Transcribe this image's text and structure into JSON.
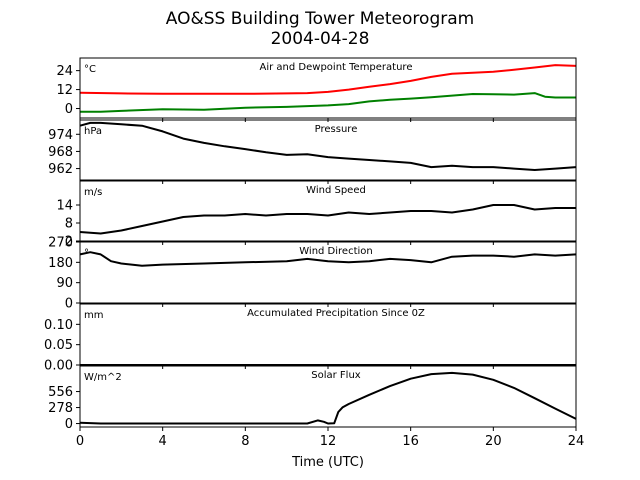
{
  "figure": {
    "title": "AO&SS Building Tower Meteorogram",
    "subtitle": "2004-04-28",
    "xlabel": "Time (UTC)"
  },
  "colors": {
    "temperature": "#ff0000",
    "dewpoint": "#008000",
    "default": "#000000"
  },
  "chart_data": [
    {
      "type": "line",
      "title": "Air and Dewpoint Temperature",
      "unit": "°C",
      "xlim": [
        0,
        24
      ],
      "xticks": [
        0,
        4,
        8,
        12,
        16,
        20,
        24
      ],
      "ylim": [
        -6,
        32
      ],
      "yticks": [
        0,
        12,
        24
      ],
      "series": [
        {
          "color": "#ff0000",
          "x": [
            0,
            2,
            4,
            6,
            8,
            10,
            11,
            12,
            13,
            14,
            15,
            16,
            17,
            18,
            19,
            20,
            21,
            22,
            23,
            24
          ],
          "y": [
            10,
            9.6,
            9.3,
            9.3,
            9.3,
            9.6,
            9.8,
            10.5,
            12,
            13.8,
            15.5,
            17.5,
            20,
            22,
            22.7,
            23.3,
            24.5,
            26,
            27.5,
            27
          ]
        },
        {
          "color": "#008000",
          "x": [
            0,
            1,
            2,
            4,
            6,
            8,
            10,
            12,
            13,
            14,
            15,
            16,
            17,
            18,
            19,
            20,
            21,
            22,
            22.5,
            23,
            24
          ],
          "y": [
            -2,
            -2,
            -1.5,
            -0.5,
            -0.8,
            0.5,
            1,
            2,
            2.8,
            4.5,
            5.5,
            6.3,
            7.2,
            8.2,
            9.2,
            9,
            8.8,
            9.8,
            7.5,
            7,
            7
          ]
        }
      ]
    },
    {
      "type": "line",
      "title": "Pressure",
      "unit": "hPa",
      "xlim": [
        0,
        24
      ],
      "xticks": [
        0,
        4,
        8,
        12,
        16,
        20,
        24
      ],
      "ylim": [
        958,
        979
      ],
      "yticks": [
        962,
        968,
        974
      ],
      "series": [
        {
          "color": "#000000",
          "x": [
            0,
            0.5,
            1,
            2,
            3,
            4,
            5,
            6,
            7,
            8,
            9,
            10,
            11,
            12,
            13,
            14,
            15,
            16,
            17,
            18,
            19,
            20,
            21,
            22,
            23,
            24
          ],
          "y": [
            977,
            978,
            978,
            977.5,
            977,
            975,
            972.5,
            971,
            969.8,
            968.8,
            967.7,
            966.8,
            967,
            966,
            965.5,
            965,
            964.5,
            964,
            962.5,
            963,
            962.5,
            962.5,
            962,
            961.5,
            962,
            962.5
          ]
        }
      ]
    },
    {
      "type": "line",
      "title": "Wind Speed",
      "unit": "m/s",
      "xlim": [
        0,
        24
      ],
      "xticks": [
        0,
        4,
        8,
        12,
        16,
        20,
        24
      ],
      "ylim": [
        2,
        22
      ],
      "yticks": [
        2,
        8,
        14
      ],
      "series": [
        {
          "color": "#000000",
          "x": [
            0,
            1,
            2,
            3,
            4,
            5,
            6,
            7,
            8,
            9,
            10,
            11,
            12,
            13,
            14,
            15,
            16,
            17,
            18,
            19,
            20,
            21,
            22,
            23,
            24
          ],
          "y": [
            5,
            4.5,
            5.5,
            7,
            8.5,
            10,
            10.5,
            10.5,
            11,
            10.5,
            11,
            11,
            10.5,
            11.5,
            11,
            11.5,
            12,
            12,
            11.5,
            12.5,
            14,
            14,
            12.5,
            13,
            13
          ]
        }
      ]
    },
    {
      "type": "line",
      "title": "Wind Direction",
      "unit": "°",
      "xlim": [
        0,
        24
      ],
      "xticks": [
        0,
        4,
        8,
        12,
        16,
        20,
        24
      ],
      "ylim": [
        0,
        270
      ],
      "yticks": [
        0,
        90,
        180,
        270
      ],
      "series": [
        {
          "color": "#000000",
          "x": [
            0,
            0.5,
            1,
            1.5,
            2,
            2.5,
            3,
            4,
            6,
            8,
            10,
            11,
            12,
            13,
            14,
            15,
            16,
            17,
            18,
            19,
            20,
            21,
            22,
            23,
            24
          ],
          "y": [
            215,
            225,
            215,
            185,
            175,
            170,
            165,
            170,
            175,
            180,
            185,
            195,
            185,
            180,
            185,
            195,
            190,
            180,
            205,
            210,
            210,
            205,
            215,
            210,
            215
          ]
        }
      ]
    },
    {
      "type": "line",
      "title": "Accumulated Precipitation Since 0Z",
      "unit": "mm",
      "xlim": [
        0,
        24
      ],
      "xticks": [
        0,
        4,
        8,
        12,
        16,
        20,
        24
      ],
      "ylim": [
        0,
        0.15
      ],
      "yticks": [
        0.0,
        0.05,
        0.1
      ],
      "ytick_labels": [
        "0.00",
        "0.05",
        "0.10"
      ],
      "series": [
        {
          "color": "#000000",
          "x": [
            0,
            24
          ],
          "y": [
            0,
            0
          ]
        }
      ]
    },
    {
      "type": "line",
      "title": "Solar Flux",
      "unit": "W/m^2",
      "xlim": [
        0,
        24
      ],
      "xticks": [
        0,
        4,
        8,
        12,
        16,
        20,
        24
      ],
      "xtick_labels": [
        "0",
        "4",
        "8",
        "12",
        "16",
        "20",
        "24"
      ],
      "ylim": [
        -60,
        1000
      ],
      "yticks": [
        0,
        278,
        556
      ],
      "series": [
        {
          "color": "#000000",
          "x": [
            0,
            1,
            2,
            4,
            6,
            8,
            10,
            11,
            11.5,
            11.8,
            12,
            12.3,
            12.5,
            12.7,
            13,
            14,
            15,
            16,
            17,
            18,
            19,
            20,
            21,
            22,
            23,
            24
          ],
          "y": [
            15,
            0,
            0,
            0,
            0,
            0,
            0,
            0,
            55,
            30,
            0,
            5,
            200,
            280,
            340,
            500,
            650,
            780,
            860,
            880,
            850,
            760,
            620,
            440,
            260,
            80
          ]
        }
      ]
    }
  ]
}
